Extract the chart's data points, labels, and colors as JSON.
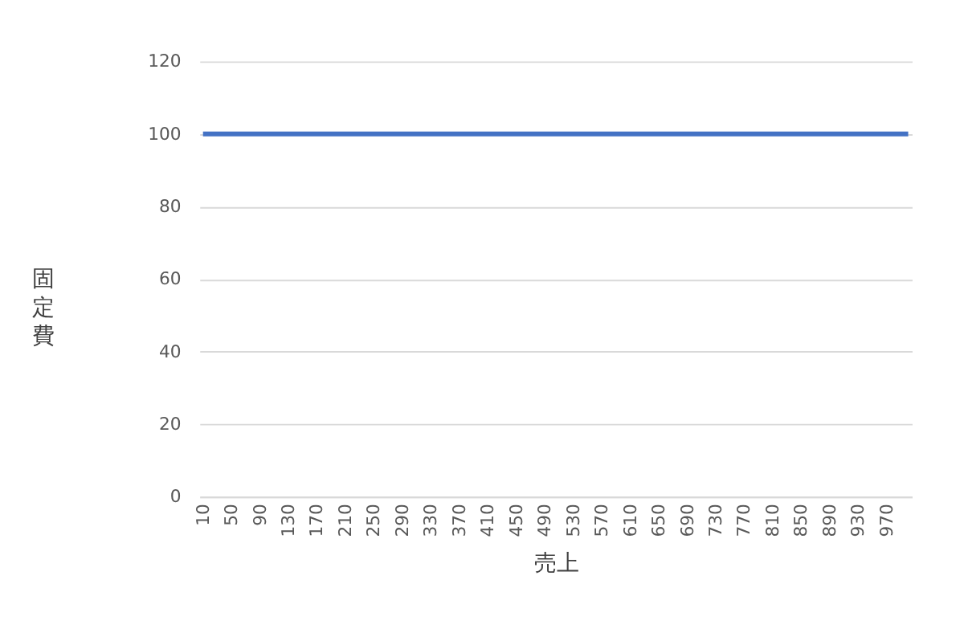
{
  "chart_data": {
    "type": "line",
    "xlabel": "売上",
    "ylabel": "固定費",
    "categories": [
      "10",
      null,
      null,
      null,
      "50",
      null,
      null,
      null,
      "90",
      null,
      null,
      null,
      "130",
      null,
      null,
      null,
      "170",
      null,
      null,
      null,
      "210",
      null,
      null,
      null,
      "250",
      null,
      null,
      null,
      "290",
      null,
      null,
      null,
      "330",
      null,
      null,
      null,
      "370",
      null,
      null,
      null,
      "410",
      null,
      null,
      null,
      "450",
      null,
      null,
      null,
      "490",
      null,
      null,
      null,
      "530",
      null,
      null,
      null,
      "570",
      null,
      null,
      null,
      "610",
      null,
      null,
      null,
      "650",
      null,
      null,
      null,
      "690",
      null,
      null,
      null,
      "730",
      null,
      null,
      null,
      "770",
      null,
      null,
      null,
      "810",
      null,
      null,
      null,
      "850",
      null,
      null,
      null,
      "890",
      null,
      null,
      null,
      "930",
      null,
      null,
      null,
      "970",
      null,
      null,
      null
    ],
    "series": [
      {
        "color": "#4472c4",
        "values": [
          100,
          100,
          100,
          100,
          100,
          100,
          100,
          100,
          100,
          100,
          100,
          100,
          100,
          100,
          100,
          100,
          100,
          100,
          100,
          100,
          100,
          100,
          100,
          100,
          100,
          100,
          100,
          100,
          100,
          100,
          100,
          100,
          100,
          100,
          100,
          100,
          100,
          100,
          100,
          100,
          100,
          100,
          100,
          100,
          100,
          100,
          100,
          100,
          100,
          100,
          100,
          100,
          100,
          100,
          100,
          100,
          100,
          100,
          100,
          100,
          100,
          100,
          100,
          100,
          100,
          100,
          100,
          100,
          100,
          100,
          100,
          100,
          100,
          100,
          100,
          100,
          100,
          100,
          100,
          100,
          100,
          100,
          100,
          100,
          100,
          100,
          100,
          100,
          100,
          100,
          100,
          100,
          100,
          100,
          100,
          100,
          100,
          100,
          100,
          100
        ]
      }
    ],
    "ylim": [
      0,
      120
    ],
    "yticks": [
      0,
      20,
      40,
      60,
      80,
      100,
      120
    ],
    "grid": "y",
    "marker": "none",
    "line_style": "solid"
  }
}
